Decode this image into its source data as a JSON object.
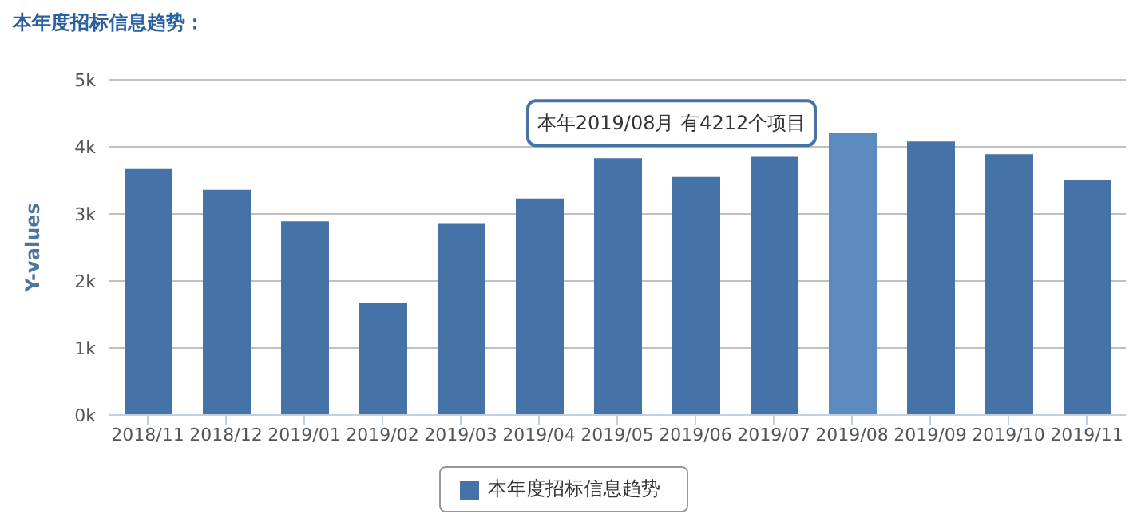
{
  "chart_data": {
    "type": "bar",
    "title": "本年度招标信息趋势：",
    "ylabel": "Y-values",
    "categories": [
      "2018/11",
      "2018/12",
      "2019/01",
      "2019/02",
      "2019/03",
      "2019/04",
      "2019/05",
      "2019/06",
      "2019/07",
      "2019/08",
      "2019/09",
      "2019/10",
      "2019/11"
    ],
    "series": [
      {
        "name": "本年度招标信息趋势",
        "color": "#4572a7",
        "colors": [
          "#4572a7",
          "#4572a7",
          "#4572a7",
          "#4572a7",
          "#4572a7",
          "#4572a7",
          "#4572a7",
          "#4572a7",
          "#4572a7",
          "#5b8ac1",
          "#4572a7",
          "#4572a7",
          "#4572a7"
        ],
        "values": [
          3670,
          3360,
          2890,
          1670,
          2850,
          3230,
          3830,
          3550,
          3850,
          4212,
          4080,
          3890,
          3510
        ]
      }
    ],
    "ylim": [
      0,
      5000
    ],
    "yticks": [
      {
        "value": 0,
        "label": "0k"
      },
      {
        "value": 1000,
        "label": "1k"
      },
      {
        "value": 2000,
        "label": "2k"
      },
      {
        "value": 3000,
        "label": "3k"
      },
      {
        "value": 4000,
        "label": "4k"
      },
      {
        "value": 5000,
        "label": "5k"
      }
    ],
    "grid": "y",
    "legend": "bottom",
    "annotations": [
      {
        "text": "本年2019/08月 有4212个项目",
        "x": "2019/08",
        "y": 4212
      }
    ]
  }
}
